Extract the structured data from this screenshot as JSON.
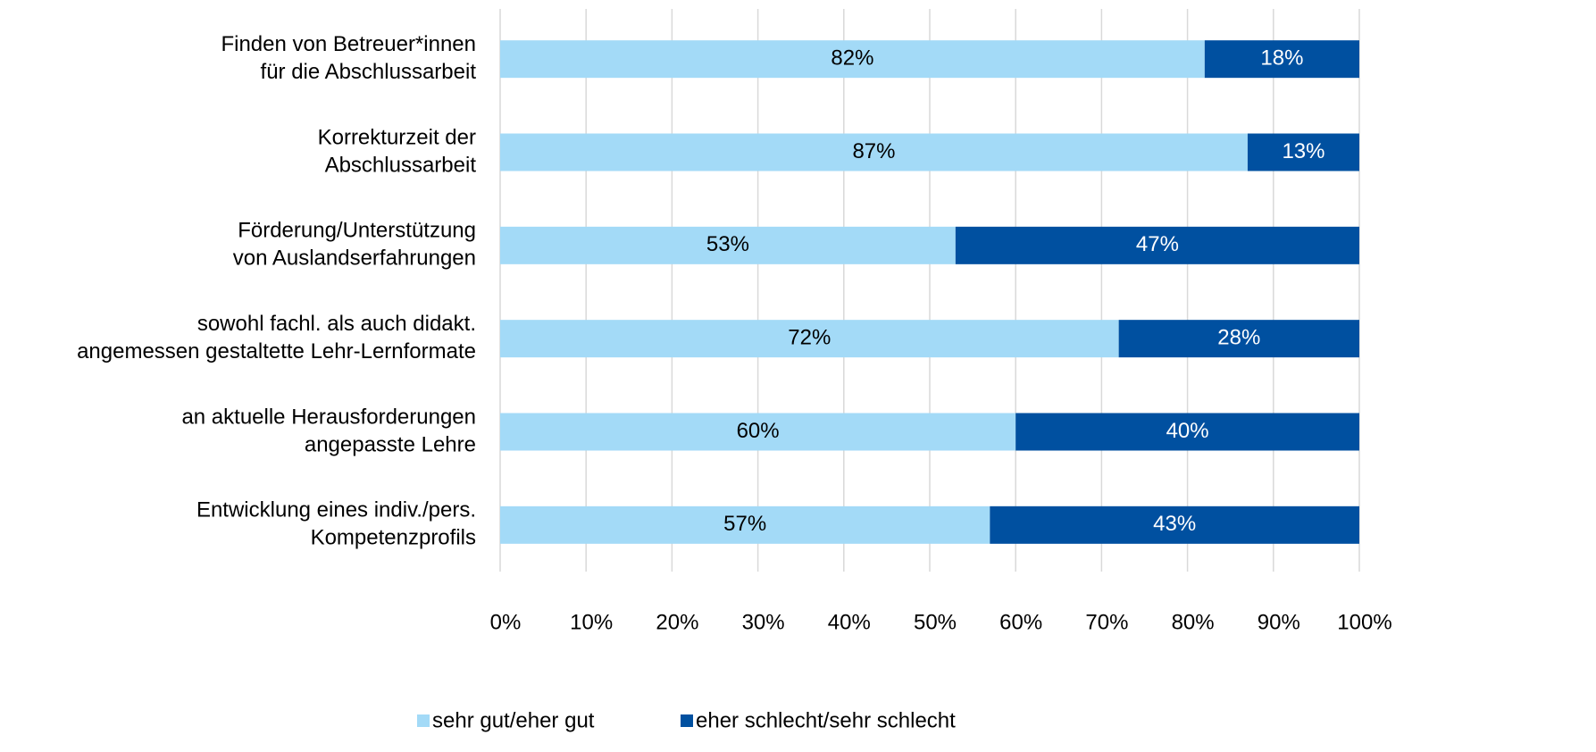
{
  "chart_data": {
    "type": "stacked-bar-horizontal",
    "categories": [
      [
        "Finden von Betreuer*innen",
        "für die Abschlussarbeit"
      ],
      [
        "Korrekturzeit der",
        "Abschlussarbeit"
      ],
      [
        "Förderung/Unterstützung",
        "von Auslandserfahrungen"
      ],
      [
        "sowohl fachl. als auch didakt.",
        "angemessen gestaltette Lehr-Lernformate"
      ],
      [
        "an aktuelle Herausforderungen",
        "angepasste Lehre"
      ],
      [
        "Entwicklung eines indiv./pers.",
        "Kompetenzprofils"
      ]
    ],
    "series": [
      {
        "name": "sehr gut/eher gut",
        "color": "#a3daf7",
        "label_color": "#000000",
        "values": [
          82,
          87,
          53,
          72,
          60,
          57
        ],
        "value_labels": [
          "82%",
          "87%",
          "53%",
          "72%",
          "60%",
          "57%"
        ]
      },
      {
        "name": "eher schlecht/sehr schlecht",
        "color": "#0050a0",
        "label_color": "#ffffff",
        "values": [
          18,
          13,
          47,
          28,
          40,
          43
        ],
        "value_labels": [
          "18%",
          "13%",
          "47%",
          "28%",
          "40%",
          "43%"
        ]
      }
    ],
    "xlim": [
      0,
      100
    ],
    "xticks": [
      {
        "value": 0,
        "label": "0%"
      },
      {
        "value": 10,
        "label": "10%"
      },
      {
        "value": 20,
        "label": "20%"
      },
      {
        "value": 30,
        "label": "30%"
      },
      {
        "value": 40,
        "label": "40%"
      },
      {
        "value": 50,
        "label": "50%"
      },
      {
        "value": 60,
        "label": "60%"
      },
      {
        "value": 70,
        "label": "70%"
      },
      {
        "value": 80,
        "label": "80%"
      },
      {
        "value": 90,
        "label": "90%"
      },
      {
        "value": 100,
        "label": "100%"
      }
    ],
    "grid": true,
    "legend": "bottom"
  }
}
